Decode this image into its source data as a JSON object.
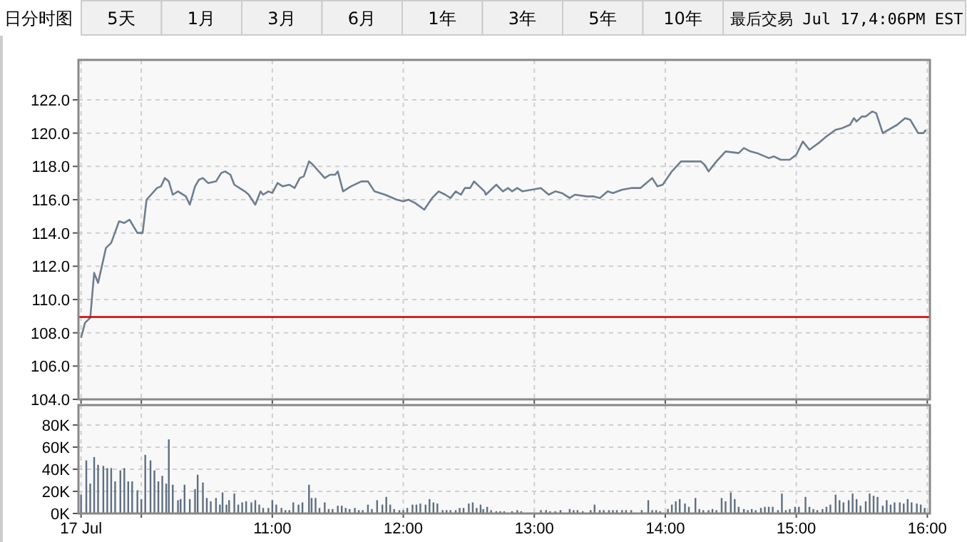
{
  "chart_data": [
    {
      "type": "line",
      "annotations": [
        "日分时图",
        "5天",
        "1月",
        "3月",
        "6月",
        "1年",
        "3年",
        "5年",
        "10年",
        "最后交易 Jul 17,4:06PM EST"
      ],
      "x": [
        9.54,
        9.57,
        9.61,
        9.64,
        9.67,
        9.73,
        9.77,
        9.83,
        9.87,
        9.91,
        9.97,
        10.01,
        10.04,
        10.12,
        10.15,
        10.18,
        10.21,
        10.24,
        10.28,
        10.34,
        10.37,
        10.41,
        10.44,
        10.47,
        10.51,
        10.57,
        10.61,
        10.64,
        10.68,
        10.71,
        10.79,
        10.82,
        10.87,
        10.91,
        10.93,
        10.97,
        11.0,
        11.04,
        11.08,
        11.13,
        11.17,
        11.21,
        11.24,
        11.28,
        11.31,
        11.4,
        11.44,
        11.48,
        11.5,
        11.54,
        11.6,
        11.68,
        11.73,
        11.78,
        11.86,
        11.95,
        12.0,
        12.04,
        12.09,
        12.16,
        12.22,
        12.27,
        12.32,
        12.36,
        12.4,
        12.44,
        12.47,
        12.51,
        12.54,
        12.58,
        12.62,
        12.63,
        12.71,
        12.76,
        12.8,
        12.83,
        12.87,
        12.91,
        12.98,
        13.05,
        13.11,
        13.16,
        13.21,
        13.27,
        13.31,
        13.4,
        13.45,
        13.5,
        13.56,
        13.6,
        13.67,
        13.74,
        13.81,
        13.9,
        13.94,
        13.98,
        14.05,
        14.12,
        14.19,
        14.27,
        14.3,
        14.33,
        14.39,
        14.46,
        14.56,
        14.6,
        14.65,
        14.7,
        14.79,
        14.83,
        14.88,
        14.95,
        15.0,
        15.05,
        15.1,
        15.17,
        15.23,
        15.3,
        15.35,
        15.41,
        15.44,
        15.46,
        15.5,
        15.53,
        15.58,
        15.61,
        15.66,
        15.77,
        15.83,
        15.87,
        15.93,
        15.97,
        15.99
      ],
      "values": [
        107.7,
        108.6,
        108.9,
        111.6,
        111.0,
        113.1,
        113.4,
        114.7,
        114.6,
        114.8,
        114.0,
        114.0,
        116.0,
        116.7,
        116.8,
        117.3,
        117.1,
        116.3,
        116.5,
        116.2,
        115.7,
        116.8,
        117.2,
        117.3,
        117.0,
        117.1,
        117.6,
        117.7,
        117.5,
        116.9,
        116.5,
        116.3,
        115.7,
        116.5,
        116.3,
        116.5,
        116.4,
        117.0,
        116.8,
        116.9,
        116.7,
        117.3,
        117.4,
        118.3,
        118.1,
        117.3,
        117.5,
        117.5,
        117.7,
        116.5,
        116.8,
        117.1,
        117.1,
        116.5,
        116.3,
        116.0,
        115.9,
        116.0,
        115.8,
        115.4,
        116.1,
        116.5,
        116.3,
        116.1,
        116.5,
        116.3,
        116.7,
        116.7,
        117.1,
        116.8,
        116.5,
        116.3,
        116.9,
        116.5,
        116.7,
        116.5,
        116.7,
        116.5,
        116.6,
        116.7,
        116.3,
        116.5,
        116.4,
        116.1,
        116.3,
        116.2,
        116.2,
        116.1,
        116.5,
        116.4,
        116.6,
        116.7,
        116.7,
        117.3,
        116.8,
        116.9,
        117.7,
        118.3,
        118.3,
        118.3,
        118.1,
        117.7,
        118.3,
        118.9,
        118.8,
        119.1,
        118.9,
        118.8,
        118.5,
        118.6,
        118.4,
        118.4,
        118.7,
        119.5,
        119.0,
        119.4,
        119.8,
        120.2,
        120.3,
        120.5,
        120.9,
        120.7,
        121.0,
        121.0,
        121.3,
        121.2,
        120.0,
        120.5,
        120.9,
        120.8,
        120.0,
        120.0,
        120.2
      ],
      "color": "#6e7e90",
      "xlim": [
        9.52,
        16.02
      ],
      "xticks": [
        {
          "value": 9.54,
          "label": null
        },
        {
          "value": 10,
          "label": null
        },
        {
          "value": 11,
          "label": null
        },
        {
          "value": 12,
          "label": null
        },
        {
          "value": 13,
          "label": null
        },
        {
          "value": 14,
          "label": null
        },
        {
          "value": 15,
          "label": null
        },
        {
          "value": 16,
          "label": null
        }
      ],
      "ylim": [
        104,
        124.4
      ],
      "yticks": [
        {
          "value": 104,
          "label": "104.0"
        },
        {
          "value": 106,
          "label": "106.0"
        },
        {
          "value": 108,
          "label": "108.0"
        },
        {
          "value": 110,
          "label": "110.0"
        },
        {
          "value": 112,
          "label": "112.0"
        },
        {
          "value": 114,
          "label": "114.0"
        },
        {
          "value": 116,
          "label": "116.0"
        },
        {
          "value": 118,
          "label": "118.0"
        },
        {
          "value": 120,
          "label": "120.0"
        },
        {
          "value": 122,
          "label": "122.0"
        }
      ],
      "ref_lines": [
        {
          "axis": "y",
          "value": 108.95,
          "color": "#cc0000"
        }
      ],
      "grid": true,
      "tick_labels": "y"
    },
    {
      "type": "bar",
      "color": "#5f6f82",
      "xlim": [
        9.52,
        16.02
      ],
      "x": [
        9.54,
        9.58,
        9.61,
        9.64,
        9.67,
        9.71,
        9.74,
        9.77,
        9.8,
        9.84,
        9.87,
        9.9,
        9.93,
        9.97,
        10.0,
        10.03,
        10.07,
        10.1,
        10.13,
        10.16,
        10.19,
        10.21,
        10.24,
        10.28,
        10.3,
        10.33,
        10.37,
        10.41,
        10.43,
        10.47,
        10.5,
        10.53,
        10.57,
        10.6,
        10.62,
        10.65,
        10.67,
        10.71,
        10.74,
        10.77,
        10.8,
        10.84,
        10.87,
        10.9,
        10.93,
        10.97,
        11.0,
        11.03,
        11.07,
        11.1,
        11.13,
        11.16,
        11.2,
        11.23,
        11.28,
        11.3,
        11.33,
        11.36,
        11.4,
        11.43,
        11.46,
        11.5,
        11.53,
        11.56,
        11.59,
        11.63,
        11.66,
        11.69,
        11.73,
        11.76,
        11.8,
        11.84,
        11.87,
        11.9,
        11.93,
        11.97,
        12.0,
        12.03,
        12.07,
        12.1,
        12.13,
        12.17,
        12.2,
        12.23,
        12.26,
        12.3,
        12.33,
        12.36,
        12.4,
        12.43,
        12.46,
        12.5,
        12.53,
        12.56,
        12.59,
        12.61,
        12.64,
        12.67,
        12.71,
        12.74,
        12.77,
        12.83,
        12.87,
        12.9,
        13.05,
        13.09,
        13.12,
        13.16,
        13.2,
        13.27,
        13.3,
        13.33,
        13.37,
        13.43,
        13.46,
        13.5,
        13.53,
        13.57,
        13.6,
        13.63,
        13.67,
        13.7,
        13.74,
        13.82,
        13.87,
        13.9,
        13.93,
        13.96,
        14.02,
        14.05,
        14.08,
        14.11,
        14.15,
        14.18,
        14.23,
        14.26,
        14.29,
        14.33,
        14.36,
        14.39,
        14.43,
        14.46,
        14.5,
        14.53,
        14.56,
        14.6,
        14.63,
        14.66,
        14.69,
        14.73,
        14.76,
        14.79,
        14.82,
        14.86,
        14.89,
        14.92,
        14.95,
        14.99,
        15.02,
        15.07,
        15.1,
        15.13,
        15.16,
        15.2,
        15.23,
        15.26,
        15.3,
        15.33,
        15.36,
        15.4,
        15.43,
        15.46,
        15.49,
        15.53,
        15.56,
        15.59,
        15.62,
        15.66,
        15.69,
        15.72,
        15.75,
        15.79,
        15.82,
        15.85,
        15.88,
        15.92,
        15.95,
        15.98
      ],
      "values": [
        17,
        48,
        27,
        51,
        44,
        43,
        41,
        41,
        29,
        39,
        41,
        29,
        29,
        21,
        13,
        53,
        48,
        39,
        29,
        34,
        27,
        67,
        26,
        12,
        13,
        26,
        13,
        22,
        35,
        28,
        14,
        11,
        14,
        8,
        19,
        8,
        12,
        18,
        8,
        10,
        11,
        10,
        12,
        8,
        5,
        5,
        12,
        8,
        5,
        3,
        3,
        10,
        8,
        10,
        26,
        14,
        14,
        5,
        10,
        4,
        4,
        7,
        7,
        5,
        4,
        5,
        3,
        3,
        8,
        4,
        12,
        8,
        15,
        8,
        4,
        3,
        3,
        5,
        8,
        8,
        9,
        8,
        13,
        10,
        9,
        3,
        3,
        3,
        3,
        5,
        5,
        9,
        10,
        5,
        8,
        4,
        6,
        3,
        2,
        2,
        2,
        2,
        3,
        2,
        3,
        3,
        2,
        2,
        3,
        4,
        3,
        3,
        2,
        3,
        8,
        3,
        3,
        3,
        3,
        3,
        3,
        3,
        3,
        3,
        12,
        3,
        3,
        2,
        4,
        8,
        11,
        13,
        9,
        6,
        14,
        4,
        3,
        3,
        4,
        3,
        14,
        11,
        19,
        13,
        6,
        4,
        3,
        4,
        3,
        5,
        6,
        6,
        6,
        3,
        18,
        3,
        4,
        6,
        6,
        15,
        6,
        4,
        3,
        4,
        6,
        8,
        17,
        12,
        10,
        12,
        18,
        13,
        7,
        11,
        18,
        16,
        15,
        7,
        12,
        8,
        10,
        10,
        9,
        13,
        10,
        9,
        8,
        5
      ],
      "xticks": [
        {
          "value": 9.54,
          "label": "17 Jul"
        },
        {
          "value": 10,
          "label": null
        },
        {
          "value": 11,
          "label": "11:00"
        },
        {
          "value": 12,
          "label": "12:00"
        },
        {
          "value": 13,
          "label": "13:00"
        },
        {
          "value": 14,
          "label": "14:00"
        },
        {
          "value": 15,
          "label": "15:00"
        },
        {
          "value": 16,
          "label": "16:00"
        }
      ],
      "ylim": [
        0,
        98
      ],
      "yticks": [
        {
          "value": 0,
          "label": "0K"
        },
        {
          "value": 20,
          "label": "20K"
        },
        {
          "value": 40,
          "label": "40K"
        },
        {
          "value": 60,
          "label": "60K"
        },
        {
          "value": 80,
          "label": "80K"
        }
      ],
      "grid": true
    }
  ]
}
